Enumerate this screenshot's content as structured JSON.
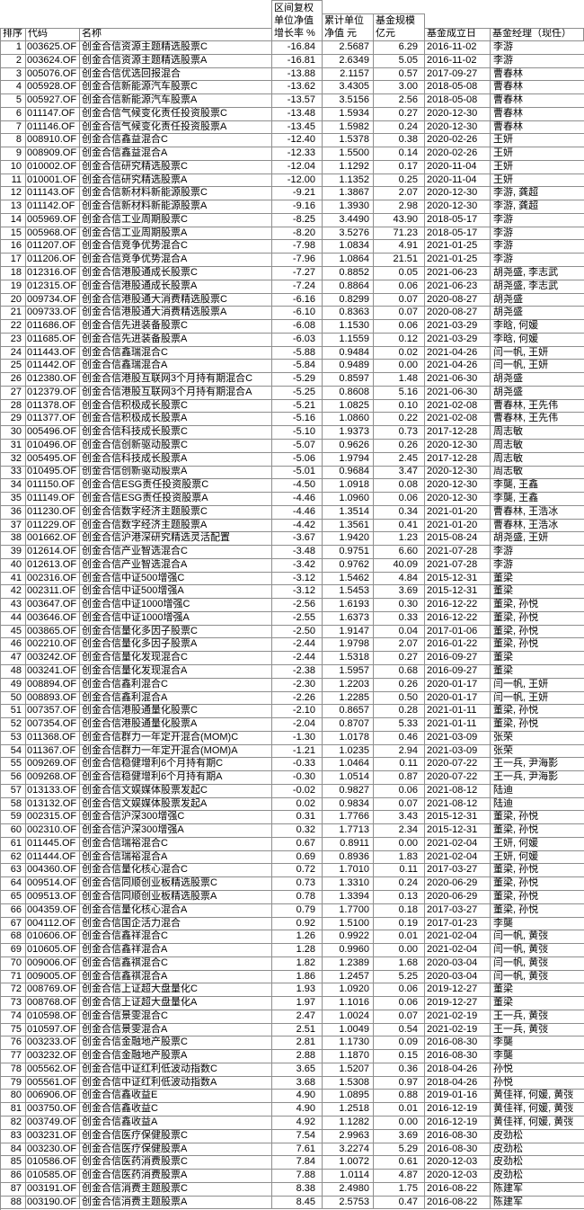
{
  "columns": [
    "rank",
    "code",
    "name",
    "growth",
    "cum_nav",
    "scale",
    "inception",
    "manager"
  ],
  "header": {
    "rank": "排序",
    "code": "代码",
    "name": "名称",
    "growth": "区间复权\n单位净值\n增长率 %",
    "cum_nav": "累计单位\n净值 元",
    "scale": "基金规模\n亿元",
    "inception": "基金成立日",
    "manager": "基金经理（现任）"
  },
  "colors": {
    "grid": "#8e8e8e",
    "text": "#000000",
    "background": "#ffffff"
  },
  "rows": [
    [
      "1",
      "003625.OF",
      "创金合信资源主题精选股票C",
      "-16.84",
      "2.5687",
      "6.29",
      "2016-11-02",
      "李游"
    ],
    [
      "2",
      "003624.OF",
      "创金合信资源主题精选股票A",
      "-16.81",
      "2.6349",
      "5.05",
      "2016-11-02",
      "李游"
    ],
    [
      "3",
      "005076.OF",
      "创金合信优选回报混合",
      "-13.88",
      "2.1157",
      "0.57",
      "2017-09-27",
      "曹春林"
    ],
    [
      "4",
      "005928.OF",
      "创金合信新能源汽车股票C",
      "-13.62",
      "3.4305",
      "3.00",
      "2018-05-08",
      "曹春林"
    ],
    [
      "5",
      "005927.OF",
      "创金合信新能源汽车股票A",
      "-13.57",
      "3.5156",
      "2.56",
      "2018-05-08",
      "曹春林"
    ],
    [
      "6",
      "011147.OF",
      "创金合信气候变化责任投资股票C",
      "-13.48",
      "1.5934",
      "0.27",
      "2020-12-30",
      "曹春林"
    ],
    [
      "7",
      "011146.OF",
      "创金合信气候变化责任投资股票A",
      "-13.45",
      "1.5982",
      "0.24",
      "2020-12-30",
      "曹春林"
    ],
    [
      "8",
      "008910.OF",
      "创金合信鑫益混合C",
      "-12.40",
      "1.5378",
      "0.38",
      "2020-02-26",
      "王妍"
    ],
    [
      "9",
      "008909.OF",
      "创金合信鑫益混合A",
      "-12.33",
      "1.5500",
      "0.14",
      "2020-02-26",
      "王妍"
    ],
    [
      "10",
      "010002.OF",
      "创金合信研究精选股票C",
      "-12.04",
      "1.1292",
      "0.17",
      "2020-11-04",
      "王妍"
    ],
    [
      "11",
      "010001.OF",
      "创金合信研究精选股票A",
      "-12.00",
      "1.1352",
      "0.25",
      "2020-11-04",
      "王妍"
    ],
    [
      "12",
      "011143.OF",
      "创金合信新材料新能源股票C",
      "-9.21",
      "1.3867",
      "2.07",
      "2020-12-30",
      "李游, 龚超"
    ],
    [
      "13",
      "011142.OF",
      "创金合信新材料新能源股票A",
      "-9.16",
      "1.3930",
      "2.98",
      "2020-12-30",
      "李游, 龚超"
    ],
    [
      "14",
      "005969.OF",
      "创金合信工业周期股票C",
      "-8.25",
      "3.4490",
      "43.90",
      "2018-05-17",
      "李游"
    ],
    [
      "15",
      "005968.OF",
      "创金合信工业周期股票A",
      "-8.20",
      "3.5276",
      "71.23",
      "2018-05-17",
      "李游"
    ],
    [
      "16",
      "011207.OF",
      "创金合信竞争优势混合C",
      "-7.98",
      "1.0834",
      "4.91",
      "2021-01-25",
      "李游"
    ],
    [
      "17",
      "011206.OF",
      "创金合信竞争优势混合A",
      "-7.96",
      "1.0864",
      "21.51",
      "2021-01-25",
      "李游"
    ],
    [
      "18",
      "012316.OF",
      "创金合信港股通成长股票C",
      "-7.27",
      "0.8852",
      "0.05",
      "2021-06-23",
      "胡尧盛, 李志武"
    ],
    [
      "19",
      "012315.OF",
      "创金合信港股通成长股票A",
      "-7.24",
      "0.8864",
      "0.06",
      "2021-06-23",
      "胡尧盛, 李志武"
    ],
    [
      "20",
      "009734.OF",
      "创金合信港股通大消费精选股票C",
      "-6.16",
      "0.8299",
      "0.07",
      "2020-08-27",
      "胡尧盛"
    ],
    [
      "21",
      "009733.OF",
      "创金合信港股通大消费精选股票A",
      "-6.10",
      "0.8363",
      "0.07",
      "2020-08-27",
      "胡尧盛"
    ],
    [
      "22",
      "011686.OF",
      "创金合信先进装备股票C",
      "-6.08",
      "1.1530",
      "0.06",
      "2021-03-29",
      "李晗, 何媛"
    ],
    [
      "23",
      "011685.OF",
      "创金合信先进装备股票A",
      "-6.03",
      "1.1559",
      "0.12",
      "2021-03-29",
      "李晗, 何媛"
    ],
    [
      "24",
      "011443.OF",
      "创金合信鑫瑞混合C",
      "-5.88",
      "0.9484",
      "0.02",
      "2021-04-26",
      "闫一帆, 王妍"
    ],
    [
      "25",
      "011442.OF",
      "创金合信鑫瑞混合A",
      "-5.84",
      "0.9489",
      "0.00",
      "2021-04-26",
      "闫一帆, 王妍"
    ],
    [
      "26",
      "012380.OF",
      "创金合信港股互联网3个月持有期混合C",
      "-5.29",
      "0.8597",
      "1.48",
      "2021-06-30",
      "胡尧盛"
    ],
    [
      "27",
      "012379.OF",
      "创金合信港股互联网3个月持有期混合A",
      "-5.25",
      "0.8608",
      "5.16",
      "2021-06-30",
      "胡尧盛"
    ],
    [
      "28",
      "011378.OF",
      "创金合信积极成长股票C",
      "-5.21",
      "1.0825",
      "0.10",
      "2021-02-08",
      "曹春林, 王先伟"
    ],
    [
      "29",
      "011377.OF",
      "创金合信积极成长股票A",
      "-5.16",
      "1.0860",
      "0.22",
      "2021-02-08",
      "曹春林, 王先伟"
    ],
    [
      "30",
      "005496.OF",
      "创金合信科技成长股票C",
      "-5.10",
      "1.9373",
      "0.73",
      "2017-12-28",
      "周志敏"
    ],
    [
      "31",
      "010496.OF",
      "创金合信创新驱动股票C",
      "-5.07",
      "0.9626",
      "0.26",
      "2020-12-30",
      "周志敏"
    ],
    [
      "32",
      "005495.OF",
      "创金合信科技成长股票A",
      "-5.06",
      "1.9794",
      "2.45",
      "2017-12-28",
      "周志敏"
    ],
    [
      "33",
      "010495.OF",
      "创金合信创新驱动股票A",
      "-5.01",
      "0.9684",
      "3.47",
      "2020-12-30",
      "周志敏"
    ],
    [
      "34",
      "011150.OF",
      "创金合信ESG责任投资股票C",
      "-4.50",
      "1.0918",
      "0.08",
      "2020-12-30",
      "李龑, 王鑫"
    ],
    [
      "35",
      "011149.OF",
      "创金合信ESG责任投资股票A",
      "-4.46",
      "1.0960",
      "0.06",
      "2020-12-30",
      "李龑, 王鑫"
    ],
    [
      "36",
      "011230.OF",
      "创金合信数字经济主题股票C",
      "-4.46",
      "1.3514",
      "0.34",
      "2021-01-20",
      "曹春林, 王浩冰"
    ],
    [
      "37",
      "011229.OF",
      "创金合信数字经济主题股票A",
      "-4.42",
      "1.3561",
      "0.41",
      "2021-01-20",
      "曹春林, 王浩冰"
    ],
    [
      "38",
      "001662.OF",
      "创金合信沪港深研究精选灵活配置",
      "-3.67",
      "1.9420",
      "1.23",
      "2015-08-24",
      "胡尧盛, 王妍"
    ],
    [
      "39",
      "012614.OF",
      "创金合信产业智选混合C",
      "-3.48",
      "0.9751",
      "6.60",
      "2021-07-28",
      "李游"
    ],
    [
      "40",
      "012613.OF",
      "创金合信产业智选混合A",
      "-3.42",
      "0.9762",
      "40.09",
      "2021-07-28",
      "李游"
    ],
    [
      "41",
      "002316.OF",
      "创金合信中证500增强C",
      "-3.12",
      "1.5462",
      "4.84",
      "2015-12-31",
      "董梁"
    ],
    [
      "42",
      "002311.OF",
      "创金合信中证500增强A",
      "-3.12",
      "1.5453",
      "3.69",
      "2015-12-31",
      "董梁"
    ],
    [
      "43",
      "003647.OF",
      "创金合信中证1000增强C",
      "-2.56",
      "1.6193",
      "0.30",
      "2016-12-22",
      "董梁, 孙悦"
    ],
    [
      "44",
      "003646.OF",
      "创金合信中证1000增强A",
      "-2.55",
      "1.6373",
      "0.33",
      "2016-12-22",
      "董梁, 孙悦"
    ],
    [
      "45",
      "003865.OF",
      "创金合信量化多因子股票C",
      "-2.50",
      "1.9147",
      "0.04",
      "2017-01-06",
      "董梁, 孙悦"
    ],
    [
      "46",
      "002210.OF",
      "创金合信量化多因子股票A",
      "-2.44",
      "1.9798",
      "2.07",
      "2016-01-22",
      "董梁, 孙悦"
    ],
    [
      "47",
      "003242.OF",
      "创金合信量化发现混合C",
      "-2.44",
      "1.5318",
      "0.27",
      "2016-09-27",
      "董梁"
    ],
    [
      "48",
      "003241.OF",
      "创金合信量化发现混合A",
      "-2.38",
      "1.5957",
      "0.68",
      "2016-09-27",
      "董梁"
    ],
    [
      "49",
      "008894.OF",
      "创金合信鑫利混合C",
      "-2.30",
      "1.2203",
      "0.26",
      "2020-01-17",
      "闫一帆, 王妍"
    ],
    [
      "50",
      "008893.OF",
      "创金合信鑫利混合A",
      "-2.26",
      "1.2285",
      "0.50",
      "2020-01-17",
      "闫一帆, 王妍"
    ],
    [
      "51",
      "007357.OF",
      "创金合信港股通量化股票C",
      "-2.10",
      "0.8657",
      "0.28",
      "2021-01-11",
      "董梁, 孙悦"
    ],
    [
      "52",
      "007354.OF",
      "创金合信港股通量化股票A",
      "-2.04",
      "0.8707",
      "5.33",
      "2021-01-11",
      "董梁, 孙悦"
    ],
    [
      "53",
      "011368.OF",
      "创金合信群力一年定开混合(MOM)C",
      "-1.30",
      "1.0178",
      "0.46",
      "2021-03-09",
      "张荣"
    ],
    [
      "54",
      "011367.OF",
      "创金合信群力一年定开混合(MOM)A",
      "-1.21",
      "1.0235",
      "2.94",
      "2021-03-09",
      "张荣"
    ],
    [
      "55",
      "009269.OF",
      "创金合信稳健增利6个月持有期C",
      "-0.33",
      "1.0464",
      "0.11",
      "2020-07-22",
      "王一兵, 尹海影"
    ],
    [
      "56",
      "009268.OF",
      "创金合信稳健增利6个月持有期A",
      "-0.30",
      "1.0514",
      "0.87",
      "2020-07-22",
      "王一兵, 尹海影"
    ],
    [
      "57",
      "013133.OF",
      "创金合信文娱媒体股票发起C",
      "-0.02",
      "0.9827",
      "0.06",
      "2021-08-12",
      "陆迪"
    ],
    [
      "58",
      "013132.OF",
      "创金合信文娱媒体股票发起A",
      "0.02",
      "0.9834",
      "0.07",
      "2021-08-12",
      "陆迪"
    ],
    [
      "59",
      "002315.OF",
      "创金合信沪深300增强C",
      "0.31",
      "1.7766",
      "3.43",
      "2015-12-31",
      "董梁, 孙悦"
    ],
    [
      "60",
      "002310.OF",
      "创金合信沪深300增强A",
      "0.32",
      "1.7713",
      "2.34",
      "2015-12-31",
      "董梁, 孙悦"
    ],
    [
      "61",
      "011445.OF",
      "创金合信瑞裕混合C",
      "0.67",
      "0.8911",
      "0.00",
      "2021-02-04",
      "王妍, 何媛"
    ],
    [
      "62",
      "011444.OF",
      "创金合信瑞裕混合A",
      "0.69",
      "0.8936",
      "1.83",
      "2021-02-04",
      "王妍, 何媛"
    ],
    [
      "63",
      "004360.OF",
      "创金合信量化核心混合C",
      "0.72",
      "1.7010",
      "0.11",
      "2017-03-27",
      "董梁, 孙悦"
    ],
    [
      "64",
      "009514.OF",
      "创金合信同顺创业板精选股票C",
      "0.73",
      "1.3310",
      "0.24",
      "2020-06-29",
      "董梁, 孙悦"
    ],
    [
      "65",
      "009513.OF",
      "创金合信同顺创业板精选股票A",
      "0.78",
      "1.3394",
      "0.13",
      "2020-06-29",
      "董梁, 孙悦"
    ],
    [
      "66",
      "004359.OF",
      "创金合信量化核心混合A",
      "0.79",
      "1.7700",
      "0.18",
      "2017-03-27",
      "董梁, 孙悦"
    ],
    [
      "67",
      "004112.OF",
      "创金合信国企活力混合",
      "0.92",
      "1.5100",
      "0.19",
      "2017-01-23",
      "李龑"
    ],
    [
      "68",
      "010606.OF",
      "创金合信鑫祥混合C",
      "1.26",
      "0.9922",
      "0.01",
      "2021-02-04",
      "闫一帆, 黄弢"
    ],
    [
      "69",
      "010605.OF",
      "创金合信鑫祥混合A",
      "1.28",
      "0.9960",
      "0.00",
      "2021-02-04",
      "闫一帆, 黄弢"
    ],
    [
      "70",
      "009006.OF",
      "创金合信鑫祺混合C",
      "1.82",
      "1.2389",
      "1.68",
      "2020-03-04",
      "闫一帆, 黄弢"
    ],
    [
      "71",
      "009005.OF",
      "创金合信鑫祺混合A",
      "1.86",
      "1.2457",
      "5.25",
      "2020-03-04",
      "闫一帆, 黄弢"
    ],
    [
      "72",
      "008769.OF",
      "创金合信上证超大盘量化C",
      "1.93",
      "1.0920",
      "0.06",
      "2019-12-27",
      "董梁"
    ],
    [
      "73",
      "008768.OF",
      "创金合信上证超大盘量化A",
      "1.97",
      "1.1016",
      "0.06",
      "2019-12-27",
      "董梁"
    ],
    [
      "74",
      "010598.OF",
      "创金合信景雯混合C",
      "2.47",
      "1.0024",
      "0.07",
      "2021-02-19",
      "王一兵, 黄弢"
    ],
    [
      "75",
      "010597.OF",
      "创金合信景雯混合A",
      "2.51",
      "1.0049",
      "0.54",
      "2021-02-19",
      "王一兵, 黄弢"
    ],
    [
      "76",
      "003233.OF",
      "创金合信金融地产股票C",
      "2.81",
      "1.1730",
      "0.09",
      "2016-08-30",
      "李龑"
    ],
    [
      "77",
      "003232.OF",
      "创金合信金融地产股票A",
      "2.88",
      "1.1870",
      "0.15",
      "2016-08-30",
      "李龑"
    ],
    [
      "78",
      "005562.OF",
      "创金合信中证红利低波动指数C",
      "3.65",
      "1.5207",
      "0.36",
      "2018-04-26",
      "孙悦"
    ],
    [
      "79",
      "005561.OF",
      "创金合信中证红利低波动指数A",
      "3.68",
      "1.5308",
      "0.97",
      "2018-04-26",
      "孙悦"
    ],
    [
      "80",
      "006906.OF",
      "创金合信鑫收益E",
      "4.90",
      "1.0895",
      "0.88",
      "2019-01-16",
      "黄佳祥, 何媛, 黄弢"
    ],
    [
      "81",
      "003750.OF",
      "创金合信鑫收益C",
      "4.90",
      "1.2518",
      "0.01",
      "2016-12-19",
      "黄佳祥, 何媛, 黄弢"
    ],
    [
      "82",
      "003749.OF",
      "创金合信鑫收益A",
      "4.92",
      "1.1282",
      "0.00",
      "2016-12-19",
      "黄佳祥, 何媛, 黄弢"
    ],
    [
      "83",
      "003231.OF",
      "创金合信医疗保健股票C",
      "7.54",
      "2.9963",
      "3.69",
      "2016-08-30",
      "皮劲松"
    ],
    [
      "84",
      "003230.OF",
      "创金合信医疗保健股票A",
      "7.61",
      "3.2274",
      "5.29",
      "2016-08-30",
      "皮劲松"
    ],
    [
      "85",
      "010586.OF",
      "创金合信医药消费股票C",
      "7.84",
      "1.0072",
      "0.61",
      "2020-12-03",
      "皮劲松"
    ],
    [
      "86",
      "010585.OF",
      "创金合信医药消费股票A",
      "7.88",
      "1.0114",
      "4.87",
      "2020-12-03",
      "皮劲松"
    ],
    [
      "87",
      "003191.OF",
      "创金合信消费主题股票C",
      "8.38",
      "2.4980",
      "1.75",
      "2016-08-22",
      "陈建军"
    ],
    [
      "88",
      "003190.OF",
      "创金合信消费主题股票A",
      "8.45",
      "2.5753",
      "0.47",
      "2016-08-22",
      "陈建军"
    ]
  ]
}
